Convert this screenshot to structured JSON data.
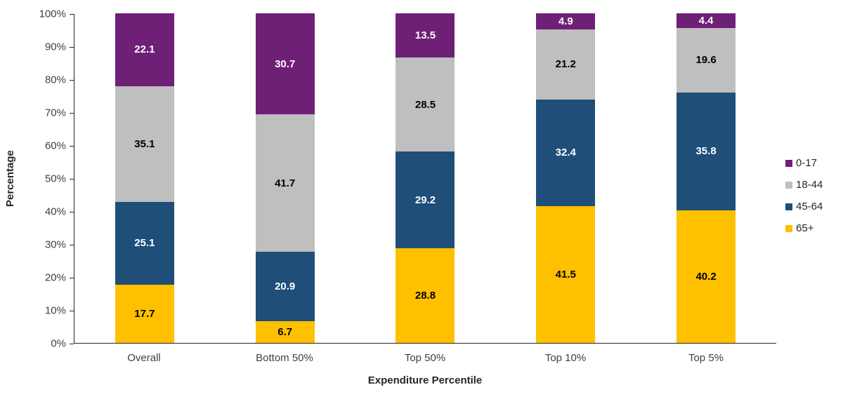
{
  "chart_data": {
    "type": "bar",
    "stacked": true,
    "title": "",
    "xlabel": "Expenditure Percentile",
    "ylabel": "Percentage",
    "ylim": [
      0,
      100
    ],
    "ytick_values": [
      0,
      10,
      20,
      30,
      40,
      50,
      60,
      70,
      80,
      90,
      100
    ],
    "ytick_labels": [
      "0%",
      "10%",
      "20%",
      "30%",
      "40%",
      "50%",
      "60%",
      "70%",
      "80%",
      "90%",
      "100%"
    ],
    "grid": false,
    "legend_position": "right",
    "categories": [
      "Overall",
      "Bottom 50%",
      "Top 50%",
      "Top 10%",
      "Top 5%"
    ],
    "series": [
      {
        "name": "65+",
        "color": "#FFC000",
        "label_color": "#000000",
        "values": [
          17.7,
          6.7,
          28.8,
          41.5,
          40.2
        ]
      },
      {
        "name": "45-64",
        "color": "#1F4E79",
        "label_color": "#FFFFFF",
        "values": [
          25.1,
          20.9,
          29.2,
          32.4,
          35.8
        ]
      },
      {
        "name": "18-44",
        "color": "#BFBFBF",
        "label_color": "#000000",
        "values": [
          35.1,
          41.7,
          28.5,
          21.2,
          19.6
        ]
      },
      {
        "name": "0-17",
        "color": "#6E2077",
        "label_color": "#FFFFFF",
        "values": [
          22.1,
          30.7,
          13.5,
          4.9,
          4.4
        ]
      }
    ],
    "legend_entries": [
      "0-17",
      "18-44",
      "45-64",
      "65+"
    ]
  }
}
